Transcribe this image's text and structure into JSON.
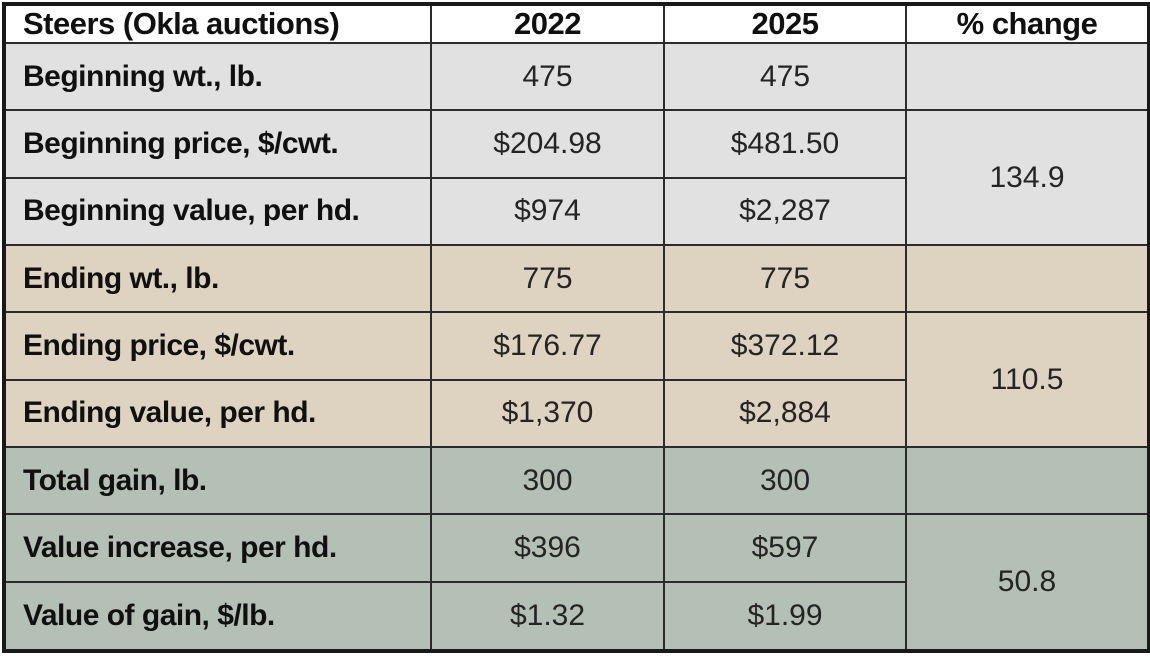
{
  "colors": {
    "header_bg": "#ffffff",
    "section_gray": "#e1e1e1",
    "section_tan": "#ded3c0",
    "section_green": "#b4c0b5",
    "border": "#2b2b2b",
    "outer_border": "#191919",
    "label_text": "#101010",
    "value_text": "#242424"
  },
  "chart_data": {
    "type": "table",
    "title": "Steers (Okla auctions)",
    "columns": [
      "Steers (Okla auctions)",
      "2022",
      "2025",
      "% change"
    ],
    "sections": [
      {
        "name": "beginning",
        "pct_change": "134.9",
        "rows": [
          {
            "label": "Beginning wt., lb.",
            "v2022": "475",
            "v2025": "475"
          },
          {
            "label": "Beginning price, $/cwt.",
            "v2022": "$204.98",
            "v2025": "$481.50"
          },
          {
            "label": "Beginning value, per hd.",
            "v2022": "$974",
            "v2025": "$2,287"
          }
        ]
      },
      {
        "name": "ending",
        "pct_change": "110.5",
        "rows": [
          {
            "label": "Ending wt., lb.",
            "v2022": "775",
            "v2025": "775"
          },
          {
            "label": "Ending price, $/cwt.",
            "v2022": "$176.77",
            "v2025": "$372.12"
          },
          {
            "label": "Ending value, per hd.",
            "v2022": "$1,370",
            "v2025": "$2,884"
          }
        ]
      },
      {
        "name": "gain",
        "pct_change": "50.8",
        "rows": [
          {
            "label": "Total gain, lb.",
            "v2022": "300",
            "v2025": "300"
          },
          {
            "label": "Value increase, per hd.",
            "v2022": "$396",
            "v2025": "$597"
          },
          {
            "label": "Value of gain, $/lb.",
            "v2022": "$1.32",
            "v2025": "$1.99"
          }
        ]
      }
    ]
  }
}
